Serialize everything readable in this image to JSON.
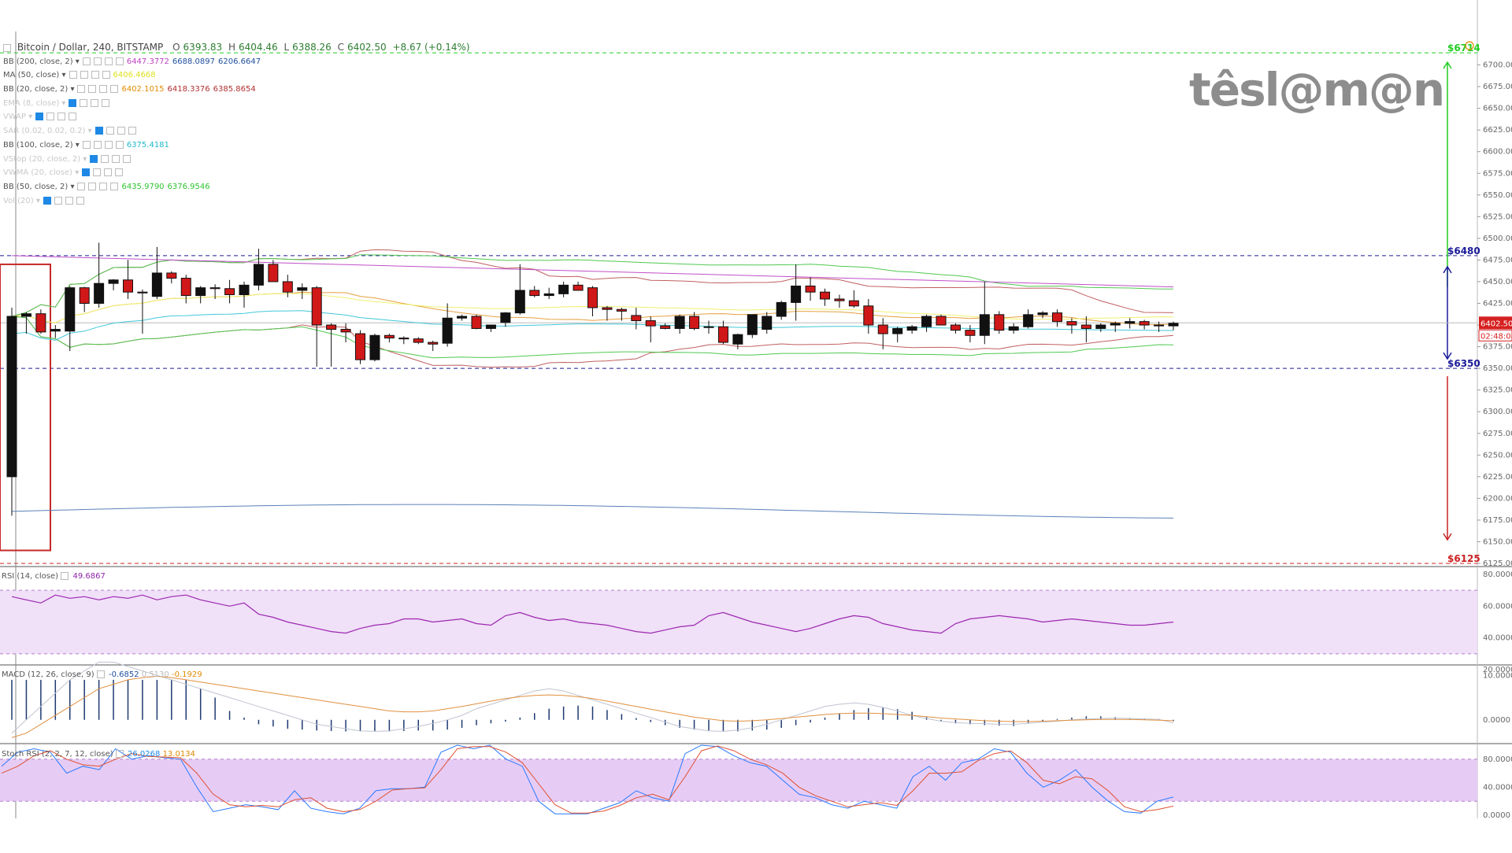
{
  "topline": {
    "symbol": "Bitcoin / Dollar, 240, BITSTAMP",
    "open_label": "O",
    "open": "6393.83",
    "high_label": "H",
    "high": "6404.46",
    "low_label": "L",
    "low": "6388.26",
    "close_label": "C",
    "close": "6402.50",
    "change": "+8.67 (+0.14%)"
  },
  "indicators": [
    {
      "label": "BB (200, close, 2)",
      "faded": false,
      "values": [
        {
          "v": "6447.3772",
          "c": "#c040c0"
        },
        {
          "v": "6688.0897",
          "c": "#1e4fa0"
        },
        {
          "v": "6206.6647",
          "c": "#1e4fa0"
        }
      ]
    },
    {
      "label": "MA (50, close)",
      "faded": false,
      "values": [
        {
          "v": "6406.4668",
          "c": "#e0e020"
        }
      ]
    },
    {
      "label": "BB (20, close, 2)",
      "faded": false,
      "values": [
        {
          "v": "6402.1015",
          "c": "#e08a00"
        },
        {
          "v": "6418.3376",
          "c": "#b03030"
        },
        {
          "v": "6385.8654",
          "c": "#b03030"
        }
      ]
    },
    {
      "label": "EMA (8, close)",
      "faded": true,
      "values": []
    },
    {
      "label": "VWAP",
      "faded": true,
      "values": []
    },
    {
      "label": "SAR (0.02, 0.02, 0.2)",
      "faded": true,
      "values": []
    },
    {
      "label": "BB (100, close, 2)",
      "faded": false,
      "values": [
        {
          "v": "6375.4181",
          "c": "#20b8c8"
        }
      ]
    },
    {
      "label": "VStop (20, close, 2)",
      "faded": true,
      "values": []
    },
    {
      "label": "VWMA (20, close)",
      "faded": true,
      "values": []
    },
    {
      "label": "BB (50, close, 2)",
      "faded": false,
      "values": [
        {
          "v": "6435.9790",
          "c": "#2ec42e"
        },
        {
          "v": "6376.9546",
          "c": "#2ec42e"
        }
      ]
    },
    {
      "label": "Vol (20)",
      "faded": true,
      "values": []
    }
  ],
  "rsi_legend": {
    "label": "RSI (14, close)",
    "value": "49.6867"
  },
  "macd_legend": {
    "label": "MACD (12, 26, close, 9)",
    "values": [
      "-0.6852",
      "0.5130",
      "-0.1929"
    ]
  },
  "stoch_legend": {
    "label": "Stoch RSI (2, 2, 7, 12, close)",
    "values": [
      "26.0268",
      "13.0134"
    ]
  },
  "levels": [
    {
      "label": "$6714",
      "price": 6714,
      "color": "#22cc22"
    },
    {
      "label": "$6480",
      "price": 6480,
      "color": "#1a1a99"
    },
    {
      "label": "$6350",
      "price": 6350,
      "color": "#1a1a99"
    },
    {
      "label": "$6125",
      "price": 6125,
      "color": "#cc2222"
    }
  ],
  "price_tag": {
    "value": "6402.50",
    "timer": "02:48:08",
    "color": "#d62020"
  },
  "logo": "têsl@m@n",
  "colors": {
    "up": "#111111",
    "down": "#d01818",
    "rsi_band": "#f0e0f8",
    "stoch_band": "#e6ccf5"
  },
  "chart_data": [
    {
      "type": "candlestick",
      "title": "Bitcoin / Dollar, 240, BITSTAMP",
      "ylim": [
        6125,
        6725
      ],
      "y_ticks": [
        "6700.00",
        "6675.00",
        "6650.00",
        "6625.00",
        "6600.00",
        "6575.00",
        "6550.00",
        "6525.00",
        "6500.00",
        "6475.00",
        "6450.00",
        "6425.00",
        "6400.00",
        "6375.00",
        "6350.00",
        "6325.00",
        "6300.00",
        "6275.00",
        "6250.00",
        "6225.00",
        "6200.00",
        "6175.00",
        "6150.00",
        "6125.00"
      ],
      "ohlc": [
        [
          6225,
          6420,
          6180,
          6410
        ],
        [
          6410,
          6415,
          6390,
          6413
        ],
        [
          6413,
          6418,
          6390,
          6392
        ],
        [
          6393,
          6400,
          6385,
          6395
        ],
        [
          6393,
          6445,
          6370,
          6443
        ],
        [
          6443,
          6444,
          6415,
          6425
        ],
        [
          6425,
          6495,
          6420,
          6448
        ],
        [
          6448,
          6453,
          6440,
          6452
        ],
        [
          6452,
          6475,
          6430,
          6438
        ],
        [
          6438,
          6441,
          6390,
          6437
        ],
        [
          6433,
          6490,
          6430,
          6460
        ],
        [
          6460,
          6462,
          6448,
          6454
        ],
        [
          6454,
          6458,
          6425,
          6434
        ],
        [
          6434,
          6445,
          6425,
          6443
        ],
        [
          6443,
          6447,
          6430,
          6442
        ],
        [
          6442,
          6452,
          6425,
          6435
        ],
        [
          6435,
          6450,
          6420,
          6446
        ],
        [
          6446,
          6488,
          6440,
          6470
        ],
        [
          6470,
          6475,
          6450,
          6450
        ],
        [
          6450,
          6458,
          6432,
          6438
        ],
        [
          6440,
          6448,
          6430,
          6443
        ],
        [
          6443,
          6445,
          6352,
          6400
        ],
        [
          6400,
          6402,
          6352,
          6395
        ],
        [
          6395,
          6402,
          6380,
          6392
        ],
        [
          6390,
          6394,
          6355,
          6360
        ],
        [
          6360,
          6390,
          6358,
          6388
        ],
        [
          6388,
          6390,
          6380,
          6385
        ],
        [
          6385,
          6387,
          6378,
          6384
        ],
        [
          6384,
          6386,
          6378,
          6380
        ],
        [
          6380,
          6382,
          6370,
          6378
        ],
        [
          6379,
          6425,
          6375,
          6408
        ],
        [
          6408,
          6412,
          6405,
          6410
        ],
        [
          6410,
          6412,
          6395,
          6396
        ],
        [
          6396,
          6400,
          6392,
          6400
        ],
        [
          6403,
          6415,
          6398,
          6414
        ],
        [
          6414,
          6470,
          6412,
          6440
        ],
        [
          6440,
          6445,
          6432,
          6434
        ],
        [
          6434,
          6443,
          6430,
          6436
        ],
        [
          6436,
          6450,
          6432,
          6446
        ],
        [
          6446,
          6450,
          6440,
          6440
        ],
        [
          6443,
          6445,
          6410,
          6420
        ],
        [
          6420,
          6422,
          6405,
          6418
        ],
        [
          6418,
          6420,
          6405,
          6416
        ],
        [
          6411,
          6420,
          6395,
          6405
        ],
        [
          6405,
          6410,
          6380,
          6399
        ],
        [
          6399,
          6402,
          6395,
          6396
        ],
        [
          6396,
          6412,
          6390,
          6410
        ],
        [
          6410,
          6415,
          6394,
          6396
        ],
        [
          6398,
          6405,
          6390,
          6398
        ],
        [
          6398,
          6405,
          6378,
          6380
        ],
        [
          6378,
          6390,
          6372,
          6389
        ],
        [
          6389,
          6412,
          6385,
          6412
        ],
        [
          6395,
          6415,
          6390,
          6410
        ],
        [
          6410,
          6428,
          6406,
          6426
        ],
        [
          6426,
          6470,
          6405,
          6445
        ],
        [
          6445,
          6455,
          6428,
          6438
        ],
        [
          6438,
          6442,
          6422,
          6430
        ],
        [
          6430,
          6435,
          6420,
          6428
        ],
        [
          6428,
          6440,
          6420,
          6422
        ],
        [
          6422,
          6430,
          6390,
          6400
        ],
        [
          6400,
          6408,
          6372,
          6390
        ],
        [
          6390,
          6398,
          6380,
          6396
        ],
        [
          6394,
          6400,
          6390,
          6398
        ],
        [
          6398,
          6412,
          6392,
          6410
        ],
        [
          6410,
          6412,
          6400,
          6400
        ],
        [
          6400,
          6402,
          6390,
          6394
        ],
        [
          6394,
          6400,
          6380,
          6388
        ],
        [
          6388,
          6450,
          6378,
          6412
        ],
        [
          6412,
          6416,
          6390,
          6394
        ],
        [
          6394,
          6402,
          6390,
          6398
        ],
        [
          6398,
          6418,
          6396,
          6412
        ],
        [
          6412,
          6416,
          6408,
          6414
        ],
        [
          6414,
          6418,
          6398,
          6404
        ],
        [
          6404,
          6408,
          6390,
          6400
        ],
        [
          6400,
          6410,
          6380,
          6396
        ],
        [
          6396,
          6402,
          6392,
          6400
        ],
        [
          6400,
          6404,
          6392,
          6402
        ],
        [
          6402,
          6408,
          6396,
          6404
        ],
        [
          6404,
          6406,
          6395,
          6400
        ],
        [
          6400,
          6404,
          6392,
          6399
        ],
        [
          6399,
          6404,
          6394,
          6402
        ]
      ]
    },
    {
      "type": "line",
      "title": "RSI (14, close)",
      "ylim": [
        20,
        80
      ],
      "y_ticks": [
        "80.0000",
        "60.0000",
        "40.0000",
        "20.0000"
      ],
      "bands": [
        70,
        30
      ],
      "values": [
        66,
        64,
        62,
        67,
        65,
        66,
        64,
        66,
        65,
        67,
        64,
        66,
        67,
        64,
        62,
        60,
        62,
        55,
        53,
        50,
        48,
        46,
        44,
        43,
        46,
        48,
        49,
        52,
        52,
        50,
        51,
        52,
        49,
        48,
        54,
        56,
        53,
        51,
        52,
        50,
        49,
        48,
        46,
        44,
        43,
        45,
        47,
        48,
        54,
        56,
        53,
        50,
        48,
        46,
        44,
        46,
        49,
        52,
        54,
        53,
        49,
        47,
        45,
        44,
        43,
        49,
        52,
        53,
        54,
        53,
        52,
        50,
        51,
        52,
        51,
        50,
        49,
        48,
        48,
        49,
        50
      ]
    },
    {
      "type": "bar+line",
      "title": "MACD (12, 26, close, 9)",
      "ylim": [
        -5,
        12
      ],
      "y_ticks": [
        "10.0000",
        "0.0000"
      ],
      "histogram": [
        9,
        9,
        9,
        9,
        9,
        9,
        9,
        9,
        9,
        9,
        9,
        9,
        9,
        7,
        5,
        2,
        0.5,
        -1,
        -1.5,
        -2,
        -2.2,
        -2.4,
        -2.5,
        -2.6,
        -2.6,
        -2.6,
        -2.6,
        -2.5,
        -2.4,
        -2.4,
        -2.2,
        -1.8,
        -1.2,
        -0.8,
        -0.4,
        0.5,
        1.5,
        2.5,
        3,
        3.2,
        3,
        2.2,
        1.3,
        0.4,
        -0.5,
        -1.2,
        -1.8,
        -2.2,
        -2.4,
        -2.5,
        -2.6,
        -2.4,
        -2.2,
        -1.8,
        -1.2,
        -0.6,
        0.5,
        1.5,
        2.2,
        2.6,
        2.8,
        2.4,
        1.8,
        0.6,
        -0.4,
        -0.8,
        -1,
        -1.2,
        -1.3,
        -1.4,
        -0.7,
        -0.3,
        0.2,
        0.5,
        0.8,
        0.8,
        0.6,
        0.4,
        0.3,
        0.2,
        -0.3
      ],
      "macd": [
        -3,
        0,
        3,
        6,
        9,
        11,
        13,
        13,
        12,
        11,
        10,
        9,
        8,
        7,
        6,
        5,
        4,
        3,
        2,
        1,
        0,
        -1,
        -1.5,
        -2,
        -2.5,
        -2.6,
        -2.5,
        -2,
        -1.5,
        -0.8,
        0,
        1,
        2.5,
        3.5,
        4.5,
        5.5,
        6.5,
        7,
        6.5,
        5.5,
        4.5,
        3.5,
        2.5,
        1.5,
        0.5,
        -0.5,
        -1.5,
        -2,
        -2.5,
        -2.6,
        -2.3,
        -1.8,
        -1,
        0,
        1,
        2,
        3,
        3.5,
        3.8,
        3.5,
        2.8,
        2,
        1,
        0.3,
        -0.3,
        -0.6,
        -0.8,
        -0.9,
        -1,
        -1,
        -0.8,
        -0.5,
        -0.3,
        0,
        0.2,
        0.3,
        0.4,
        0.3,
        0.2,
        0.1,
        -0.6852
      ],
      "signal": [
        -4,
        -3,
        -1,
        1,
        3,
        5,
        7,
        8,
        9,
        9.5,
        9.8,
        9.5,
        9,
        8.5,
        8,
        7.5,
        7,
        6.5,
        6,
        5.5,
        5,
        4.5,
        4,
        3.5,
        3,
        2.5,
        2,
        1.8,
        1.8,
        2,
        2.5,
        3,
        3.6,
        4.2,
        4.8,
        5.2,
        5.5,
        5.6,
        5.5,
        5.2,
        4.8,
        4.2,
        3.6,
        3,
        2.4,
        1.8,
        1.2,
        0.6,
        0.2,
        -0.2,
        -0.3,
        -0.2,
        0,
        0.3,
        0.6,
        0.9,
        1.2,
        1.4,
        1.5,
        1.5,
        1.4,
        1.2,
        1,
        0.7,
        0.4,
        0.2,
        0,
        -0.2,
        -0.3,
        -0.4,
        -0.4,
        -0.3,
        -0.2,
        -0.1,
        0,
        0.1,
        0.1,
        0.1,
        0,
        -0.1,
        -0.1929
      ]
    },
    {
      "type": "line",
      "title": "Stoch RSI (2, 2, 7, 12, close)",
      "ylim": [
        0,
        100
      ],
      "y_ticks": [
        "80.0000",
        "40.0000",
        "0.0000"
      ],
      "bands": [
        80,
        20
      ],
      "k": [
        70,
        90,
        95,
        90,
        60,
        70,
        65,
        95,
        80,
        85,
        82,
        80,
        40,
        5,
        10,
        15,
        12,
        8,
        35,
        10,
        5,
        2,
        10,
        35,
        38,
        38,
        40,
        90,
        100,
        95,
        100,
        80,
        70,
        20,
        2,
        2,
        2,
        10,
        18,
        35,
        25,
        20,
        88,
        100,
        98,
        85,
        75,
        70,
        50,
        30,
        25,
        15,
        10,
        20,
        15,
        10,
        55,
        70,
        50,
        75,
        80,
        95,
        90,
        60,
        40,
        50,
        65,
        40,
        20,
        5,
        3,
        20,
        26
      ],
      "d": [
        60,
        70,
        85,
        92,
        80,
        72,
        70,
        80,
        88,
        84,
        83,
        82,
        60,
        30,
        15,
        12,
        14,
        12,
        22,
        25,
        10,
        5,
        8,
        20,
        36,
        38,
        39,
        65,
        95,
        98,
        98,
        90,
        75,
        45,
        15,
        3,
        3,
        6,
        14,
        25,
        30,
        22,
        55,
        92,
        99,
        92,
        80,
        72,
        60,
        40,
        28,
        20,
        12,
        15,
        18,
        14,
        35,
        60,
        60,
        62,
        78,
        88,
        92,
        75,
        50,
        45,
        55,
        52,
        35,
        12,
        5,
        8,
        13
      ]
    }
  ]
}
